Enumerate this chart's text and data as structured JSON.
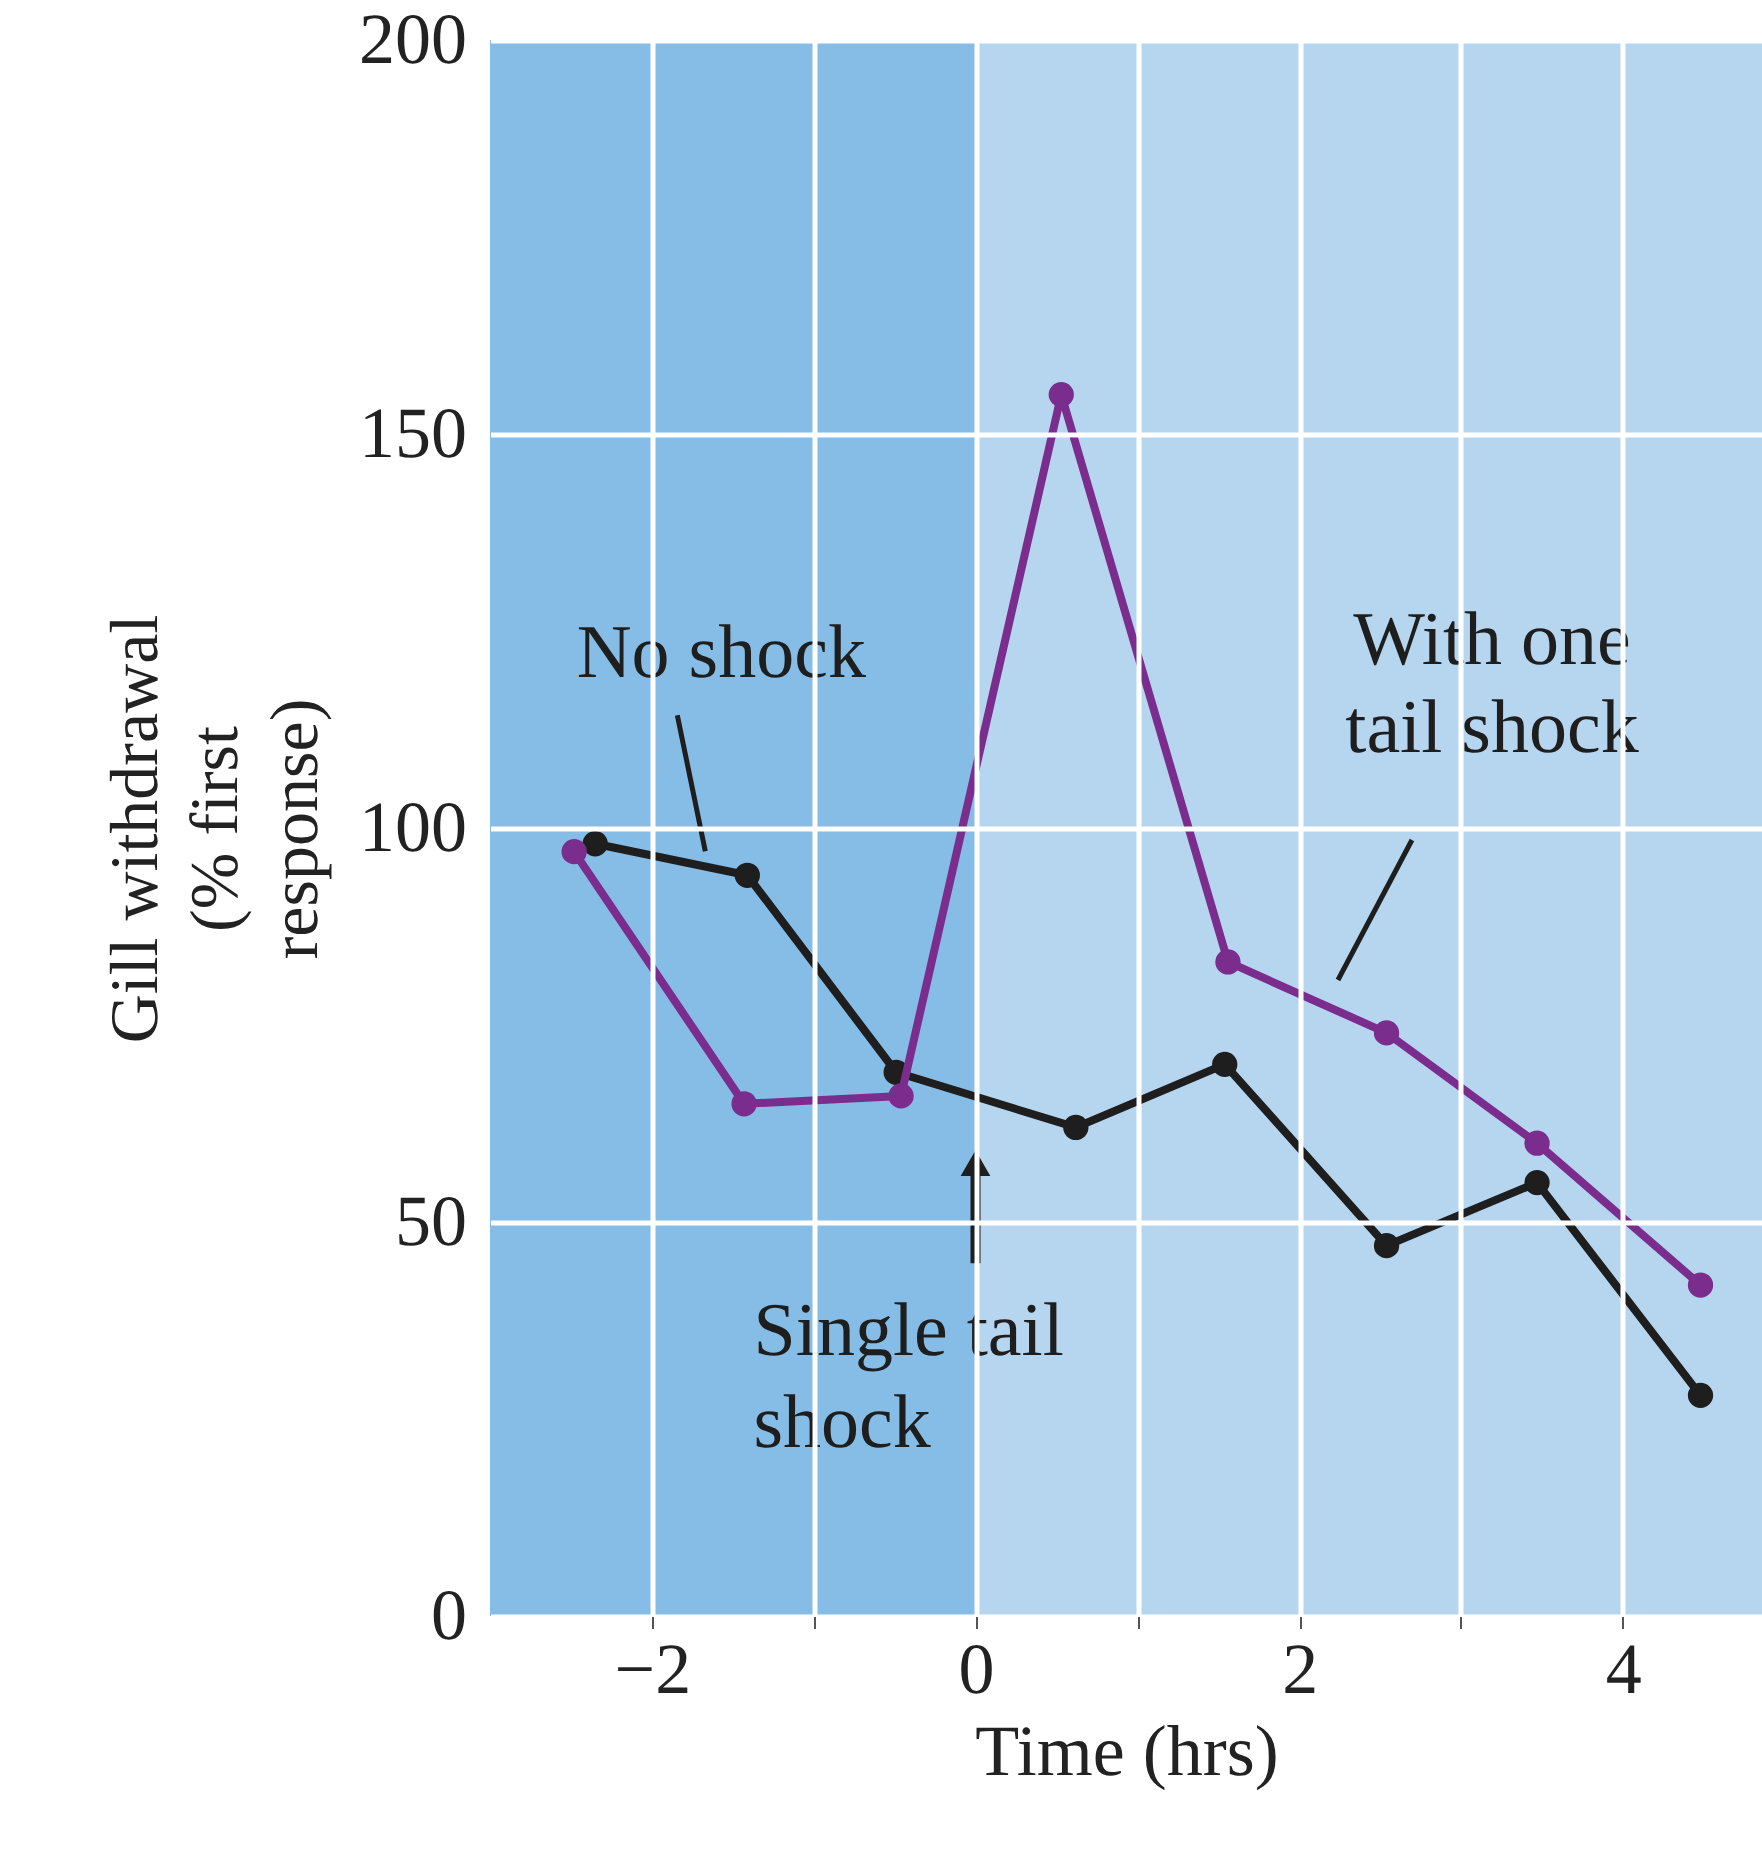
{
  "chart_data": {
    "type": "line",
    "xlabel": "Time (hrs)",
    "ylabel": "Gill withdrawal (% first response)",
    "xlim": [
      -3,
      4.86
    ],
    "ylim": [
      0,
      200
    ],
    "xticks": [
      -2,
      {
        "value": -1,
        "label": null
      },
      0,
      {
        "value": 1,
        "label": null
      },
      2,
      {
        "value": 3,
        "label": null
      },
      4
    ],
    "yticks": [
      0,
      50,
      100,
      150,
      200
    ],
    "grid": true,
    "legend": false,
    "marker": "circle",
    "line_style": "solid",
    "series": [
      {
        "name": "No shock",
        "color": "#1e1e1e",
        "x": [
          -2.35,
          -1.41,
          -0.49,
          0.62,
          1.54,
          2.54,
          3.47,
          4.48
        ],
        "values": [
          98,
          94,
          69,
          62,
          70,
          47,
          55,
          28
        ]
      },
      {
        "name": "With one tail shock",
        "color": "#7b2d8e",
        "x": [
          -2.48,
          -1.43,
          -0.46,
          0.53,
          1.56,
          2.54,
          3.47,
          4.48
        ],
        "values": [
          97,
          65,
          66,
          155,
          83,
          74,
          60,
          42
        ]
      }
    ],
    "bands": [
      {
        "axis": "x",
        "from": -3,
        "to": 0,
        "color": "#86bde7"
      }
    ],
    "annotations": [
      {
        "text": "Single tail shock",
        "x": 0,
        "y": 60
      }
    ]
  }
}
